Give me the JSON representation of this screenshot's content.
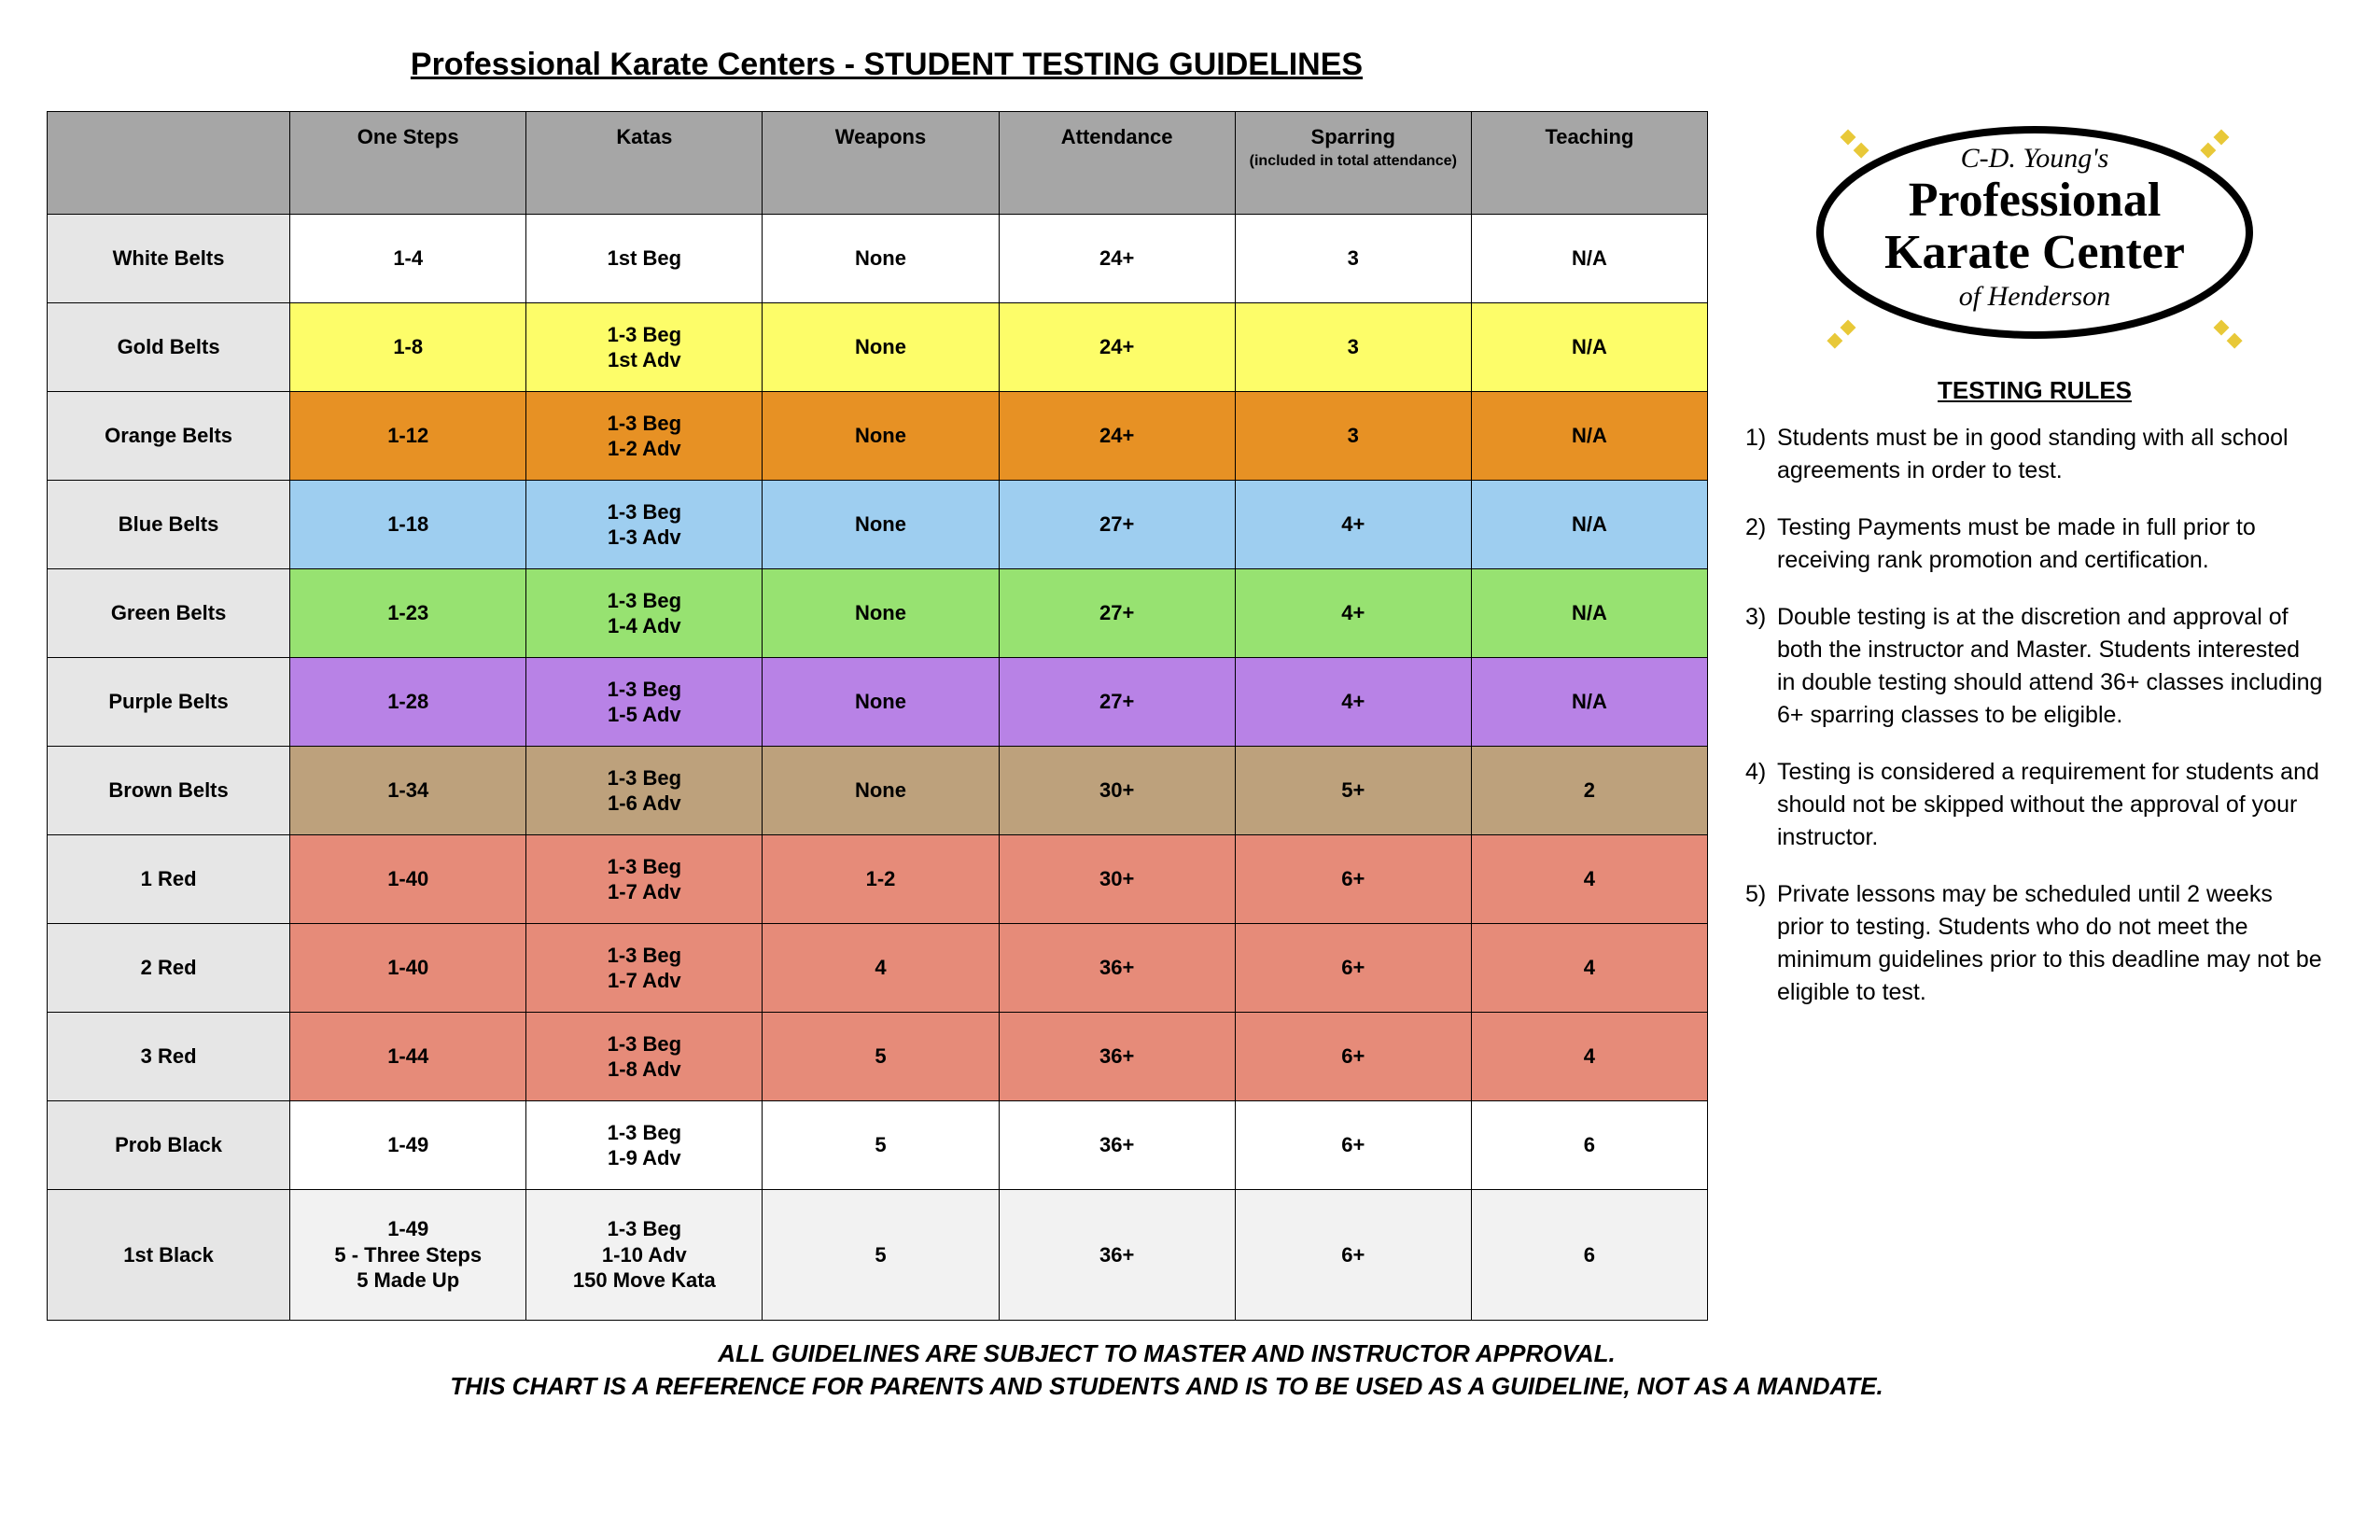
{
  "title": "Professional Karate Centers - STUDENT TESTING GUIDELINES",
  "columns": [
    {
      "label": "One Steps",
      "sub": ""
    },
    {
      "label": "Katas",
      "sub": ""
    },
    {
      "label": "Weapons",
      "sub": ""
    },
    {
      "label": "Attendance",
      "sub": ""
    },
    {
      "label": "Sparring",
      "sub": "(included in total attendance)"
    },
    {
      "label": "Teaching",
      "sub": ""
    }
  ],
  "rows": [
    {
      "label": "White Belts",
      "bg": "#ffffff",
      "cells": [
        "1-4",
        "1st Beg",
        "None",
        "24+",
        "3",
        "N/A"
      ]
    },
    {
      "label": "Gold Belts",
      "bg": "#fdfd69",
      "cells": [
        "1-8",
        "1-3 Beg\n1st Adv",
        "None",
        "24+",
        "3",
        "N/A"
      ]
    },
    {
      "label": "Orange Belts",
      "bg": "#e79124",
      "cells": [
        "1-12",
        "1-3 Beg\n1-2 Adv",
        "None",
        "24+",
        "3",
        "N/A"
      ]
    },
    {
      "label": "Blue Belts",
      "bg": "#9ecef0",
      "cells": [
        "1-18",
        "1-3 Beg\n1-3 Adv",
        "None",
        "27+",
        "4+",
        "N/A"
      ]
    },
    {
      "label": "Green Belts",
      "bg": "#97e271",
      "cells": [
        "1-23",
        "1-3 Beg\n1-4 Adv",
        "None",
        "27+",
        "4+",
        "N/A"
      ]
    },
    {
      "label": "Purple Belts",
      "bg": "#b882e6",
      "cells": [
        "1-28",
        "1-3 Beg\n1-5 Adv",
        "None",
        "27+",
        "4+",
        "N/A"
      ]
    },
    {
      "label": "Brown Belts",
      "bg": "#bda17c",
      "cells": [
        "1-34",
        "1-3 Beg\n1-6 Adv",
        "None",
        "30+",
        "5+",
        "2"
      ]
    },
    {
      "label": "1 Red",
      "bg": "#e68b79",
      "cells": [
        "1-40",
        "1-3 Beg\n1-7 Adv",
        "1-2",
        "30+",
        "6+",
        "4"
      ]
    },
    {
      "label": "2 Red",
      "bg": "#e68b79",
      "cells": [
        "1-40",
        "1-3 Beg\n1-7 Adv",
        "4",
        "36+",
        "6+",
        "4"
      ]
    },
    {
      "label": "3 Red",
      "bg": "#e68b79",
      "cells": [
        "1-44",
        "1-3 Beg\n1-8 Adv",
        "5",
        "36+",
        "6+",
        "4"
      ]
    },
    {
      "label": "Prob Black",
      "bg": "#ffffff",
      "cells": [
        "1-49",
        "1-3 Beg\n1-9 Adv",
        "5",
        "36+",
        "6+",
        "6"
      ]
    },
    {
      "label": "1st Black",
      "bg": "#f2f2f2",
      "tall": true,
      "cells": [
        "1-49\n5 - Three Steps\n5 Made Up",
        "1-3 Beg\n1-10 Adv\n150 Move Kata",
        "5",
        "36+",
        "6+",
        "6"
      ]
    }
  ],
  "footer_line1": "ALL GUIDELINES ARE SUBJECT TO MASTER AND INSTRUCTOR APPROVAL.",
  "footer_line2": "THIS CHART IS A REFERENCE FOR PARENTS AND STUDENTS AND IS TO BE USED AS A GUIDELINE, NOT AS A MANDATE.",
  "logo": {
    "top": "C-D. Young's",
    "line1": "Professional",
    "line2": "Karate Center",
    "bottom": "of Henderson"
  },
  "rules_title": "TESTING RULES",
  "rules": [
    "Students must be in good standing with all school agreements in order to test.",
    "Testing Payments must be made in full prior to receiving rank promotion and certification.",
    "Double testing is at the discretion and approval of both the instructor and Master.  Students interested in double testing should attend 36+ classes including 6+ sparring classes to be eligible.",
    "Testing is considered a requirement for students and should not be skipped without the approval of your instructor.",
    "Private lessons may be scheduled until 2 weeks prior to testing.  Students who do not meet the minimum guidelines prior to this deadline may not be eligible to test."
  ],
  "col_widths": [
    "260px",
    "253px",
    "253px",
    "253px",
    "253px",
    "253px",
    "253px"
  ],
  "header_bg": "#a6a6a6",
  "rowhead_bg": "#e6e6e6"
}
